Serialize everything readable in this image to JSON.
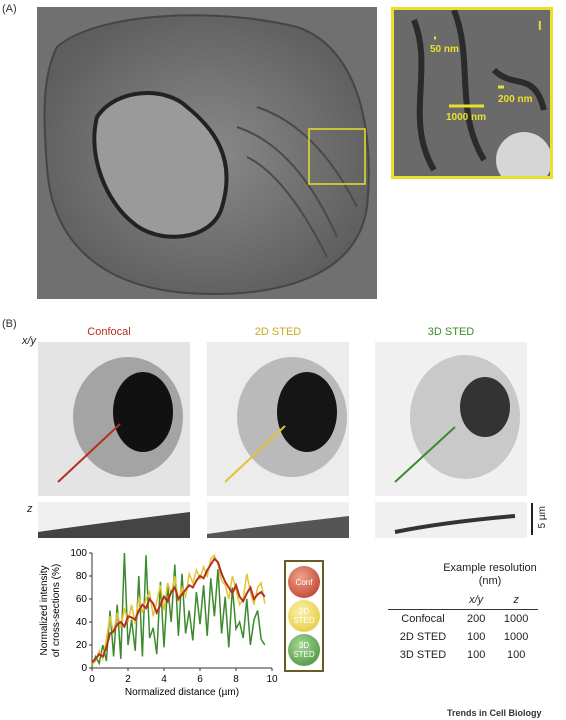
{
  "panels": {
    "a_label": "(A)",
    "b_label": "(B)"
  },
  "panel_a": {
    "inset_labels": [
      "50 nm",
      "200 nm",
      "1000 nm"
    ],
    "inset_marker": "I"
  },
  "panel_b": {
    "columns": [
      "Confocal",
      "2D STED",
      "3D STED"
    ],
    "row_labels": [
      "x/y",
      "z"
    ],
    "scale_bar": "5 µm",
    "colors": {
      "confocal": "#b5301f",
      "sted2d": "#e0c531",
      "sted3d": "#3d8a2e"
    }
  },
  "chart_data": {
    "type": "line",
    "xlabel": "Normalized distance (µm)",
    "ylabel": "Normalized intensity of cross-sections (%)",
    "xlim": [
      0,
      10
    ],
    "ylim": [
      0,
      100
    ],
    "xticks": [
      0,
      2,
      4,
      6,
      8,
      10
    ],
    "yticks": [
      0,
      20,
      40,
      60,
      80,
      100
    ],
    "x": [
      0,
      0.2,
      0.4,
      0.6,
      0.8,
      1.0,
      1.2,
      1.4,
      1.6,
      1.8,
      2.0,
      2.2,
      2.4,
      2.6,
      2.8,
      3.0,
      3.2,
      3.4,
      3.6,
      3.8,
      4.0,
      4.2,
      4.4,
      4.6,
      4.8,
      5.0,
      5.2,
      5.4,
      5.6,
      5.8,
      6.0,
      6.2,
      6.4,
      6.6,
      6.8,
      7.0,
      7.2,
      7.4,
      7.6,
      7.8,
      8.0,
      8.2,
      8.4,
      8.6,
      8.8,
      9.0,
      9.2,
      9.4,
      9.6
    ],
    "series": [
      {
        "name": "Conf",
        "color": "#b5301f",
        "values": [
          5,
          8,
          12,
          10,
          18,
          30,
          32,
          38,
          40,
          36,
          45,
          44,
          42,
          50,
          55,
          52,
          60,
          56,
          48,
          55,
          62,
          58,
          66,
          70,
          60,
          64,
          68,
          72,
          70,
          76,
          80,
          78,
          85,
          90,
          95,
          92,
          82,
          75,
          70,
          65,
          72,
          62,
          58,
          65,
          70,
          60,
          64,
          66,
          62
        ]
      },
      {
        "name": "2D STED",
        "color": "#e0c531",
        "values": [
          3,
          6,
          15,
          8,
          25,
          45,
          30,
          48,
          35,
          52,
          40,
          55,
          38,
          62,
          48,
          60,
          66,
          45,
          58,
          72,
          50,
          74,
          64,
          80,
          58,
          70,
          62,
          82,
          74,
          85,
          78,
          88,
          80,
          95,
          98,
          90,
          76,
          72,
          60,
          80,
          68,
          55,
          60,
          82,
          66,
          55,
          70,
          74,
          56
        ]
      },
      {
        "name": "3D STED",
        "color": "#3d8a2e",
        "values": [
          2,
          10,
          4,
          20,
          6,
          50,
          10,
          55,
          8,
          100,
          20,
          42,
          15,
          80,
          10,
          98,
          26,
          35,
          12,
          75,
          18,
          72,
          40,
          90,
          28,
          82,
          30,
          50,
          24,
          66,
          38,
          72,
          28,
          78,
          45,
          86,
          30,
          62,
          18,
          70,
          34,
          40,
          26,
          60,
          20,
          42,
          50,
          25,
          20
        ]
      }
    ]
  },
  "legend": {
    "items": [
      "Conf",
      "2D STED",
      "3D STED"
    ]
  },
  "table": {
    "title": "Example resolution (nm)",
    "col_headers": [
      "x/y",
      "z"
    ],
    "rows": [
      {
        "label": "Confocal",
        "xy": "200",
        "z": "1000"
      },
      {
        "label": "2D STED",
        "xy": "100",
        "z": "1000"
      },
      {
        "label": "3D STED",
        "xy": "100",
        "z": "100"
      }
    ]
  },
  "footer": {
    "journal": "Trends in Cell Biology"
  }
}
